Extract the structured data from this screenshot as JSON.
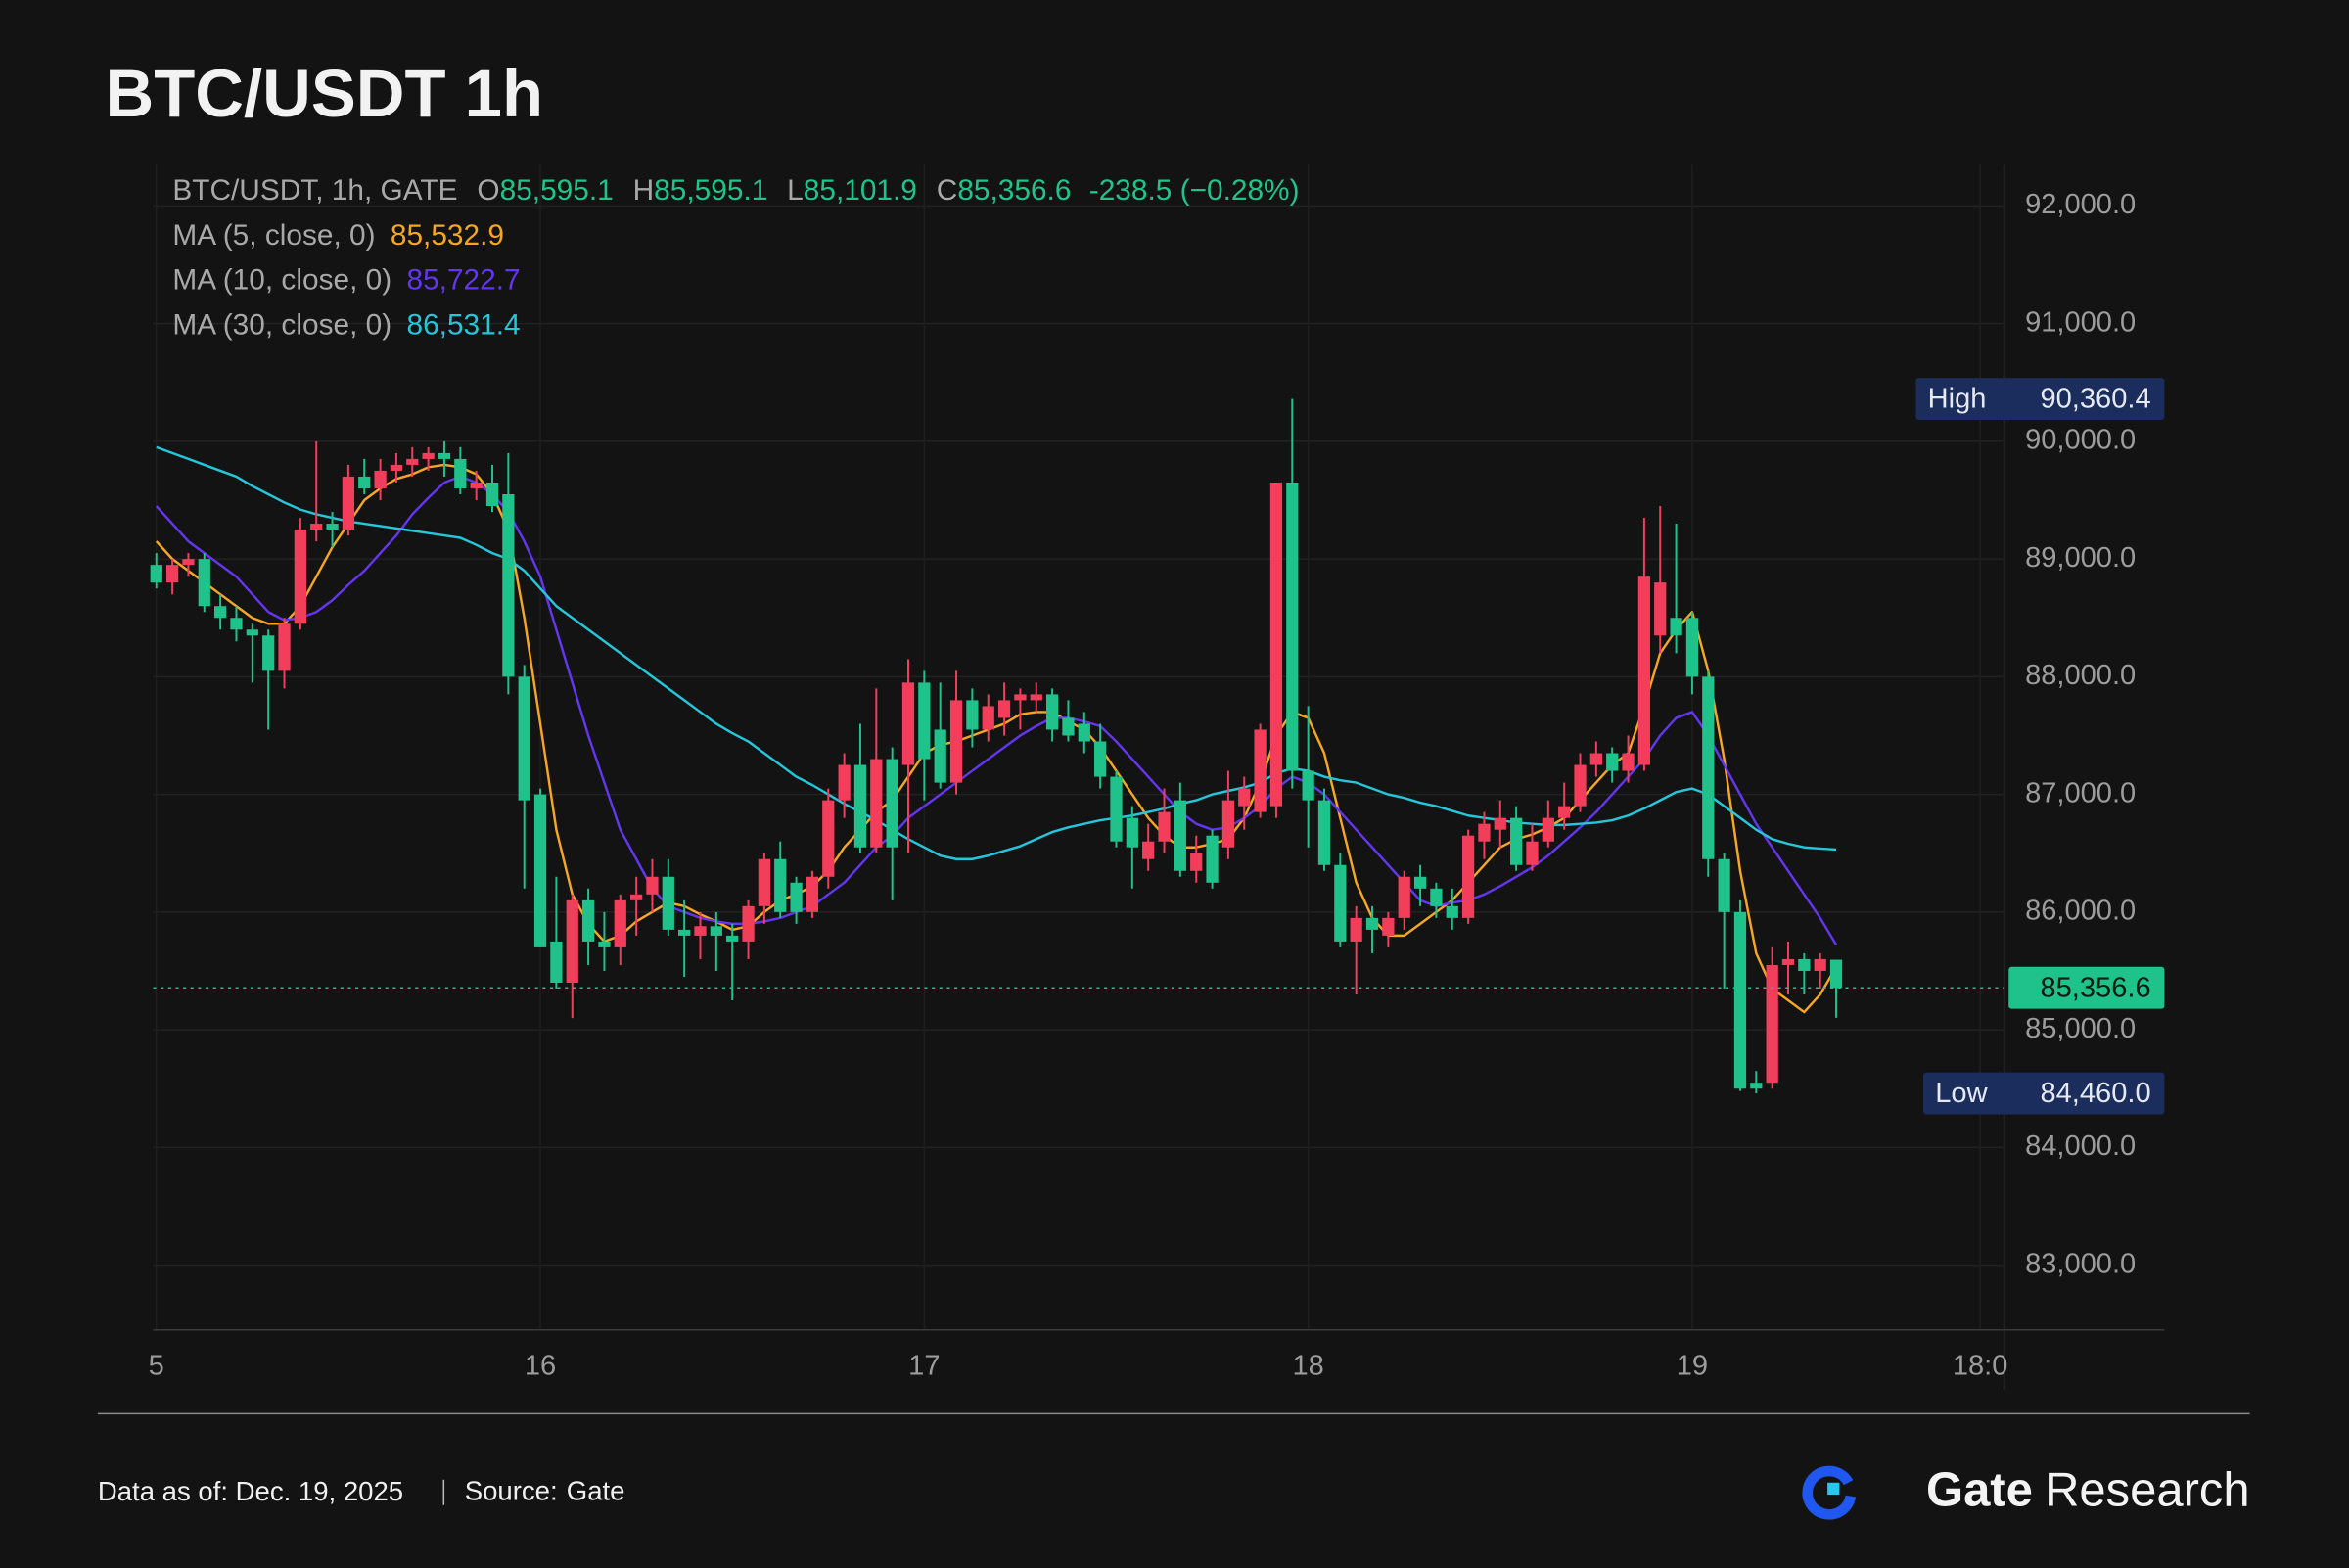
{
  "chart_data": {
    "type": "candlestick",
    "title": "BTC/USDT 1h",
    "legend": {
      "symbol": "BTC/USDT, 1h, GATE",
      "items": [
        {
          "key": "O",
          "value": "85,595.1"
        },
        {
          "key": "H",
          "value": "85,595.1"
        },
        {
          "key": "L",
          "value": "85,101.9"
        },
        {
          "key": "C",
          "value": "85,356.6"
        }
      ],
      "change": "-238.5 (−0.28%)"
    },
    "up_color": "#f23e5b",
    "down_color": "#1fc28a",
    "open": [
      88950,
      88800,
      88950,
      89000,
      88600,
      88500,
      88400,
      88350,
      88050,
      88450,
      89250,
      89300,
      89250,
      89700,
      89600,
      89750,
      89800,
      89850,
      89900,
      89850,
      89600,
      89650,
      89550,
      88000,
      87000,
      85750,
      85400,
      86100,
      85750,
      85700,
      86100,
      86150,
      86300,
      85850,
      85800,
      85880,
      85800,
      85750,
      86050,
      86450,
      86250,
      86000,
      86300,
      86950,
      87250,
      86550,
      87300,
      87250,
      87950,
      87550,
      87100,
      87800,
      87550,
      87650,
      87800,
      87800,
      87850,
      87650,
      87600,
      87450,
      87150,
      86800,
      86450,
      86600,
      86950,
      86350,
      86650,
      86550,
      86900,
      86850,
      86900,
      89650,
      87200,
      86950,
      86400,
      85750,
      85950,
      85800,
      85950,
      86300,
      86200,
      86050,
      85950,
      86600,
      86700,
      86800,
      86400,
      86600,
      86800,
      86900,
      87250,
      87350,
      87200,
      87250,
      88350,
      88500,
      88500,
      88000,
      86450,
      86000,
      84550,
      84550,
      85550,
      85600,
      85500,
      85595.1
    ],
    "high": [
      89050,
      89000,
      89050,
      89050,
      88700,
      88600,
      88450,
      88400,
      88500,
      89350,
      90000,
      89400,
      89800,
      89850,
      89850,
      89900,
      89950,
      89950,
      90000,
      89950,
      89750,
      89800,
      89900,
      88100,
      87050,
      86300,
      86150,
      86200,
      86000,
      86150,
      86300,
      86450,
      86450,
      86100,
      86000,
      86000,
      85900,
      86100,
      86500,
      86600,
      86300,
      86350,
      87050,
      87350,
      87600,
      87900,
      87400,
      88150,
      88050,
      87950,
      88050,
      87900,
      87850,
      87950,
      87900,
      87950,
      87900,
      87800,
      87700,
      87600,
      87200,
      86900,
      86750,
      87050,
      87100,
      86650,
      86700,
      87200,
      87150,
      87600,
      89650,
      90360.4,
      87750,
      87050,
      86500,
      86050,
      86050,
      86000,
      86350,
      86400,
      86250,
      86200,
      86700,
      86850,
      86950,
      86900,
      86750,
      86950,
      87100,
      87350,
      87450,
      87400,
      87500,
      89350,
      89450,
      89300,
      88550,
      88050,
      86500,
      86100,
      84650,
      85700,
      85750,
      85650,
      85650,
      85595.1
    ],
    "low": [
      88750,
      88700,
      88850,
      88550,
      88400,
      88300,
      87950,
      87550,
      87900,
      88400,
      89150,
      89100,
      89200,
      89550,
      89500,
      89650,
      89700,
      89750,
      89700,
      89550,
      89500,
      89400,
      87850,
      86200,
      85700,
      85350,
      85100,
      85550,
      85500,
      85550,
      85800,
      86000,
      85800,
      85450,
      85600,
      85500,
      85250,
      85600,
      85900,
      85950,
      85900,
      85950,
      86200,
      86800,
      86500,
      86500,
      86100,
      86500,
      86950,
      87050,
      87000,
      87400,
      87450,
      87500,
      87550,
      87700,
      87450,
      87450,
      87350,
      87050,
      86550,
      86200,
      86350,
      86500,
      86300,
      86250,
      86200,
      86450,
      86700,
      86800,
      86800,
      87050,
      86550,
      86350,
      85700,
      85300,
      85650,
      85700,
      85850,
      86050,
      85950,
      85850,
      85900,
      86450,
      86550,
      86350,
      86350,
      86550,
      86700,
      86850,
      87150,
      87100,
      87100,
      87200,
      88200,
      88200,
      87850,
      86300,
      85350,
      84480,
      84460,
      84500,
      85300,
      85300,
      85350,
      85101.9
    ],
    "close": [
      88800,
      88950,
      89000,
      88600,
      88500,
      88400,
      88350,
      88050,
      88450,
      89250,
      89300,
      89250,
      89700,
      89600,
      89750,
      89800,
      89850,
      89900,
      89850,
      89600,
      89650,
      89450,
      88000,
      86950,
      85700,
      85400,
      86100,
      85750,
      85700,
      86100,
      86150,
      86300,
      85850,
      85800,
      85880,
      85800,
      85750,
      86050,
      86450,
      86000,
      86000,
      86300,
      86950,
      87250,
      86550,
      87300,
      86550,
      87950,
      87300,
      87100,
      87800,
      87550,
      87750,
      87800,
      87850,
      87850,
      87550,
      87500,
      87450,
      87150,
      86600,
      86550,
      86600,
      86850,
      86350,
      86500,
      86250,
      86950,
      87050,
      87550,
      89650,
      87200,
      86950,
      86400,
      85750,
      85950,
      85850,
      85950,
      86300,
      86200,
      86050,
      85950,
      86650,
      86750,
      86800,
      86400,
      86600,
      86800,
      86900,
      87250,
      87350,
      87200,
      87350,
      88850,
      88800,
      88350,
      88000,
      86450,
      86000,
      84500,
      84500,
      85550,
      85600,
      85500,
      85600,
      85356.6
    ],
    "series": [
      {
        "name": "MA (5, close, 0)",
        "color": "#f5a623",
        "last_label": "85,532.9",
        "values": [
          89150,
          89000,
          88900,
          88800,
          88700,
          88600,
          88500,
          88450,
          88450,
          88600,
          88850,
          89100,
          89300,
          89500,
          89600,
          89680,
          89720,
          89780,
          89800,
          89780,
          89720,
          89550,
          89250,
          88500,
          87600,
          86700,
          86150,
          85900,
          85750,
          85800,
          85920,
          86000,
          86080,
          86050,
          85980,
          85920,
          85850,
          85880,
          86000,
          86100,
          86150,
          86220,
          86350,
          86550,
          86700,
          86850,
          86950,
          87150,
          87350,
          87420,
          87450,
          87500,
          87550,
          87600,
          87680,
          87700,
          87700,
          87620,
          87550,
          87400,
          87200,
          87000,
          86800,
          86650,
          86550,
          86550,
          86580,
          86620,
          86800,
          87100,
          87500,
          87700,
          87650,
          87350,
          86800,
          86250,
          85950,
          85800,
          85800,
          85900,
          86000,
          86100,
          86250,
          86400,
          86550,
          86620,
          86660,
          86720,
          86800,
          86950,
          87100,
          87250,
          87350,
          87750,
          88200,
          88400,
          88550,
          88050,
          87300,
          86350,
          85650,
          85350,
          85250,
          85150,
          85300,
          85532.9
        ]
      },
      {
        "name": "MA (10, close, 0)",
        "color": "#6336ee",
        "last_label": "85,722.7",
        "values": [
          89450,
          89300,
          89150,
          89050,
          88950,
          88850,
          88700,
          88550,
          88480,
          88500,
          88550,
          88650,
          88780,
          88900,
          89050,
          89200,
          89380,
          89520,
          89650,
          89700,
          89650,
          89550,
          89400,
          89150,
          88850,
          88400,
          87950,
          87500,
          87100,
          86700,
          86450,
          86200,
          86050,
          86000,
          85950,
          85920,
          85900,
          85900,
          85920,
          85950,
          86000,
          86050,
          86150,
          86250,
          86400,
          86550,
          86650,
          86800,
          86900,
          87000,
          87100,
          87200,
          87300,
          87400,
          87500,
          87580,
          87650,
          87650,
          87620,
          87580,
          87450,
          87300,
          87150,
          87000,
          86850,
          86750,
          86700,
          86720,
          86800,
          86900,
          87050,
          87150,
          87100,
          87000,
          86850,
          86700,
          86550,
          86400,
          86250,
          86100,
          86050,
          86080,
          86100,
          86150,
          86220,
          86300,
          86380,
          86480,
          86600,
          86720,
          86850,
          87000,
          87150,
          87300,
          87500,
          87650,
          87700,
          87500,
          87250,
          87000,
          86750,
          86550,
          86350,
          86150,
          85950,
          85722.7
        ]
      },
      {
        "name": "MA (30, close, 0)",
        "color": "#26c6da",
        "last_label": "86,531.4",
        "values": [
          89950,
          89900,
          89850,
          89800,
          89750,
          89700,
          89620,
          89550,
          89480,
          89420,
          89380,
          89350,
          89320,
          89300,
          89280,
          89260,
          89240,
          89220,
          89200,
          89180,
          89120,
          89050,
          89000,
          88900,
          88750,
          88600,
          88500,
          88400,
          88300,
          88200,
          88100,
          88000,
          87900,
          87800,
          87700,
          87600,
          87520,
          87450,
          87350,
          87250,
          87150,
          87080,
          87000,
          86920,
          86850,
          86780,
          86700,
          86620,
          86550,
          86480,
          86450,
          86450,
          86480,
          86520,
          86560,
          86620,
          86680,
          86720,
          86750,
          86780,
          86800,
          86820,
          86850,
          86880,
          86920,
          86950,
          87000,
          87030,
          87060,
          87100,
          87180,
          87220,
          87200,
          87150,
          87120,
          87100,
          87050,
          87000,
          86970,
          86930,
          86900,
          86860,
          86820,
          86800,
          86780,
          86760,
          86750,
          86740,
          86740,
          86750,
          86760,
          86780,
          86820,
          86880,
          86950,
          87020,
          87050,
          87000,
          86900,
          86800,
          86700,
          86620,
          86580,
          86550,
          86540,
          86531.4
        ]
      }
    ],
    "high_marker": {
      "label": "High",
      "value": 90360.4,
      "value_label": "90,360.4"
    },
    "low_marker": {
      "label": "Low",
      "value": 84460.0,
      "value_label": "84,460.0"
    },
    "last_price": {
      "value": 85356.6,
      "value_label": "85,356.6"
    },
    "xlim": [
      -0.2,
      115.5
    ],
    "xticks": [
      {
        "value": 0,
        "label": "5"
      },
      {
        "value": 24,
        "label": "16"
      },
      {
        "value": 48,
        "label": "17"
      },
      {
        "value": 72,
        "label": "18"
      },
      {
        "value": 96,
        "label": "19"
      },
      {
        "value": 114,
        "label": "18:0"
      }
    ],
    "ylim": [
      82450,
      92350
    ],
    "yticks": [
      {
        "value": 83000,
        "label": "83,000.0"
      },
      {
        "value": 84000,
        "label": "84,000.0"
      },
      {
        "value": 85000,
        "label": "85,000.0"
      },
      {
        "value": 86000,
        "label": "86,000.0"
      },
      {
        "value": 87000,
        "label": "87,000.0"
      },
      {
        "value": 88000,
        "label": "88,000.0"
      },
      {
        "value": 89000,
        "label": "89,000.0"
      },
      {
        "value": 90000,
        "label": "90,000.0"
      },
      {
        "value": 91000,
        "label": "91,000.0"
      },
      {
        "value": 92000,
        "label": "92,000.0"
      }
    ],
    "grid": true
  },
  "footer": {
    "date": "Data as of: Dec. 19, 2025",
    "source_label": "Source:",
    "source": "Gate",
    "brand": "Gate",
    "brand_suffix": "Research"
  }
}
